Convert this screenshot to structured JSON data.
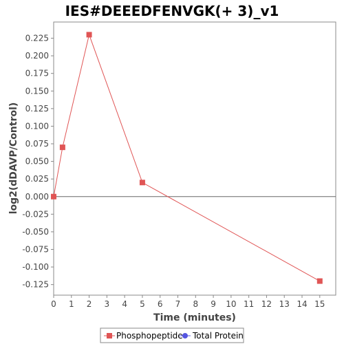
{
  "chart_data": {
    "type": "line",
    "title": "IES#DEEEDFENVGK(+ 3)_v1",
    "xlabel": "Time (minutes)",
    "ylabel": "log2(dDAVP/Control)",
    "xlim": [
      0,
      15.9
    ],
    "ylim": [
      -0.14,
      0.248
    ],
    "x_ticks": [
      0,
      1,
      2,
      3,
      4,
      5,
      6,
      7,
      8,
      9,
      10,
      11,
      12,
      13,
      14,
      15
    ],
    "y_ticks": [
      -0.125,
      -0.1,
      -0.075,
      -0.05,
      -0.025,
      0.0,
      0.025,
      0.05,
      0.075,
      0.1,
      0.125,
      0.15,
      0.175,
      0.2,
      0.225
    ],
    "y_tick_labels": [
      "-0.125",
      "-0.100",
      "-0.075",
      "-0.050",
      "-0.025",
      "0.000",
      "0.025",
      "0.050",
      "0.075",
      "0.100",
      "0.125",
      "0.150",
      "0.175",
      "0.200",
      "0.225"
    ],
    "zero_line": true,
    "grid": false,
    "legend_position": "bottom-center",
    "series": [
      {
        "name": "Phosphopeptide",
        "color": "#e05555",
        "marker": "square",
        "points": [
          {
            "x": 0,
            "y": 0.0
          },
          {
            "x": 0.5,
            "y": 0.07
          },
          {
            "x": 2,
            "y": 0.23
          },
          {
            "x": 5,
            "y": 0.02
          },
          {
            "x": 15,
            "y": -0.12
          }
        ]
      },
      {
        "name": "Total Protein",
        "color": "#5555e0",
        "marker": "circle",
        "points": []
      }
    ]
  }
}
